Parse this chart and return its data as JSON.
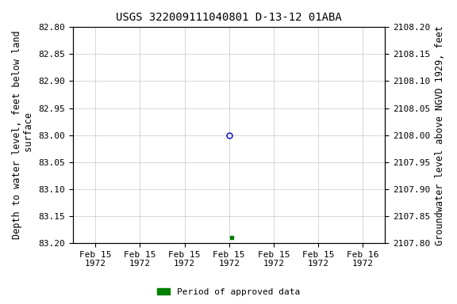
{
  "title": "USGS 322009111040801 D-13-12 01ABA",
  "ylabel_left": "Depth to water level, feet below land\n surface",
  "ylabel_right": "Groundwater level above NGVD 1929, feet",
  "ylim_left_top": 82.8,
  "ylim_left_bottom": 83.2,
  "ylim_right_top": 2108.2,
  "ylim_right_bottom": 2107.8,
  "yticks_left": [
    82.8,
    82.85,
    82.9,
    82.95,
    83.0,
    83.05,
    83.1,
    83.15,
    83.2
  ],
  "yticks_right": [
    2108.2,
    2108.15,
    2108.1,
    2108.05,
    2108.0,
    2107.95,
    2107.9,
    2107.85,
    2107.8
  ],
  "data_point_x": 3.0,
  "data_point_y": 83.0,
  "data_point_color": "#0000cc",
  "data_point_markerfacecolor": "none",
  "data_point_markersize": 5,
  "green_point_x": 3.05,
  "green_point_y": 83.19,
  "green_point_color": "#008000",
  "green_point_markersize": 3,
  "xtick_positions": [
    0,
    1,
    2,
    3,
    4,
    5,
    6
  ],
  "xtick_labels": [
    "Feb 15\n1972",
    "Feb 15\n1972",
    "Feb 15\n1972",
    "Feb 15\n1972",
    "Feb 15\n1972",
    "Feb 15\n1972",
    "Feb 16\n1972"
  ],
  "xlim": [
    -0.5,
    6.5
  ],
  "background_color": "#ffffff",
  "grid_color": "#c8c8c8",
  "legend_label": "Period of approved data",
  "legend_color": "#008000",
  "title_fontsize": 10,
  "axis_label_fontsize": 8.5,
  "tick_fontsize": 8
}
